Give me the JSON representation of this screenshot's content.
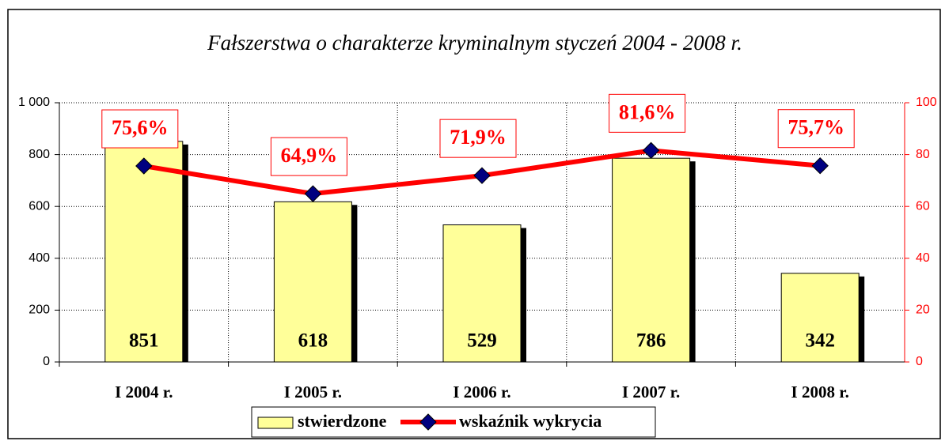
{
  "chart_data": {
    "type": "bar",
    "title": "Fałszerstwa o charakterze kryminalnym styczeń 2004 - 2008 r.",
    "categories": [
      "I 2004 r.",
      "I 2005 r.",
      "I 2006 r.",
      "I 2007 r.",
      "I 2008 r."
    ],
    "series": [
      {
        "name": "stwierdzone",
        "color": "#ffff99",
        "values": [
          851,
          618,
          529,
          786,
          342
        ]
      },
      {
        "name": "wskaźnik wykrycia",
        "color": "#ff0000",
        "marker_color": "#000080",
        "axis": "y2",
        "type": "line",
        "values": [
          75.6,
          64.9,
          71.9,
          81.6,
          75.7
        ],
        "value_labels": [
          "75,6%",
          "64,9%",
          "71,9%",
          "81,6%",
          "75,7%"
        ]
      }
    ],
    "ylim": [
      0,
      1000
    ],
    "yticks": [
      0,
      200,
      400,
      600,
      800,
      {
        "value": 1000,
        "label": "1 000"
      }
    ],
    "y2lim": [
      0,
      100
    ],
    "y2ticks": [
      0,
      20,
      40,
      60,
      80,
      100
    ],
    "grid": true
  }
}
